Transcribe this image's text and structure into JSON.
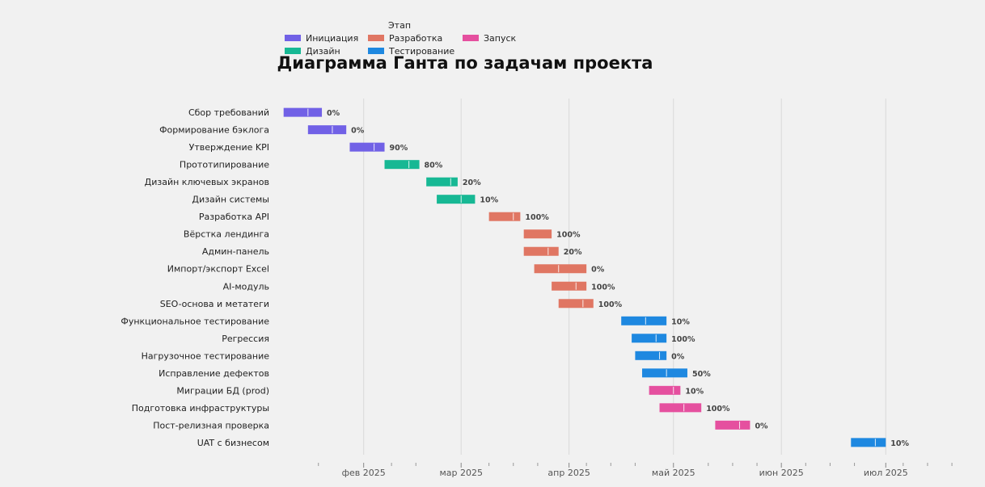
{
  "chart_data": {
    "type": "gantt",
    "title": "Диаграмма Ганта по задачам проекта",
    "legend": {
      "title": "Этап",
      "placement": "top-left",
      "items": [
        {
          "name": "Инициация",
          "color": "#7161e6"
        },
        {
          "name": "Дизайн",
          "color": "#17b894"
        },
        {
          "name": "Разработка",
          "color": "#e07663"
        },
        {
          "name": "Тестирование",
          "color": "#1e88e0"
        },
        {
          "name": "Запуск",
          "color": "#e5509f"
        }
      ]
    },
    "x_axis": {
      "type": "date",
      "range": [
        "2025-01-10",
        "2025-07-23"
      ],
      "tick_labels": [
        {
          "date": "2025-02-01",
          "label": "фев 2025"
        },
        {
          "date": "2025-03-01",
          "label": "мар 2025"
        },
        {
          "date": "2025-04-01",
          "label": "апр 2025"
        },
        {
          "date": "2025-05-01",
          "label": "май 2025"
        },
        {
          "date": "2025-06-01",
          "label": "июн 2025"
        },
        {
          "date": "2025-07-01",
          "label": "июл 2025"
        }
      ],
      "minor_ticks": [
        "2025-01-19",
        "2025-02-09",
        "2025-02-16",
        "2025-03-09",
        "2025-03-16",
        "2025-03-23",
        "2025-04-06",
        "2025-04-13",
        "2025-04-20",
        "2025-05-11",
        "2025-05-18",
        "2025-05-25",
        "2025-06-08",
        "2025-06-15",
        "2025-06-22",
        "2025-07-06",
        "2025-07-13",
        "2025-07-20"
      ]
    },
    "grid": true,
    "tasks": [
      {
        "name": "Сбор требований",
        "stage": "Инициация",
        "start": "2025-01-09",
        "end": "2025-01-20",
        "progress_label": "0%"
      },
      {
        "name": "Формирование бэклога",
        "stage": "Инициация",
        "start": "2025-01-16",
        "end": "2025-01-27",
        "progress_label": "0%"
      },
      {
        "name": "Утверждение KPI",
        "stage": "Инициация",
        "start": "2025-01-28",
        "end": "2025-02-07",
        "progress_label": "90%"
      },
      {
        "name": "Прототипирование",
        "stage": "Дизайн",
        "start": "2025-02-07",
        "end": "2025-02-17",
        "progress_label": "80%"
      },
      {
        "name": "Дизайн ключевых экранов",
        "stage": "Дизайн",
        "start": "2025-02-19",
        "end": "2025-02-28",
        "progress_label": "20%"
      },
      {
        "name": "Дизайн системы",
        "stage": "Дизайн",
        "start": "2025-02-22",
        "end": "2025-03-05",
        "progress_label": "10%"
      },
      {
        "name": "Разработка API",
        "stage": "Разработка",
        "start": "2025-03-09",
        "end": "2025-03-18",
        "progress_label": "100%"
      },
      {
        "name": "Вёрстка лендинга",
        "stage": "Разработка",
        "start": "2025-03-19",
        "end": "2025-03-27",
        "progress_label": "100%"
      },
      {
        "name": "Админ-панель",
        "stage": "Разработка",
        "start": "2025-03-19",
        "end": "2025-03-29",
        "progress_label": "20%"
      },
      {
        "name": "Импорт/экспорт Excel",
        "stage": "Разработка",
        "start": "2025-03-22",
        "end": "2025-04-06",
        "progress_label": "0%"
      },
      {
        "name": "AI-модуль",
        "stage": "Разработка",
        "start": "2025-03-27",
        "end": "2025-04-06",
        "progress_label": "100%"
      },
      {
        "name": "SEO-основа и метатеги",
        "stage": "Разработка",
        "start": "2025-03-29",
        "end": "2025-04-08",
        "progress_label": "100%"
      },
      {
        "name": "Функциональное тестирование",
        "stage": "Тестирование",
        "start": "2025-04-16",
        "end": "2025-04-29",
        "progress_label": "10%"
      },
      {
        "name": "Регрессия",
        "stage": "Тестирование",
        "start": "2025-04-19",
        "end": "2025-04-29",
        "progress_label": "100%"
      },
      {
        "name": "Нагрузочное тестирование",
        "stage": "Тестирование",
        "start": "2025-04-20",
        "end": "2025-04-29",
        "progress_label": "0%"
      },
      {
        "name": "Исправление дефектов",
        "stage": "Тестирование",
        "start": "2025-04-22",
        "end": "2025-05-05",
        "progress_label": "50%"
      },
      {
        "name": "Миграции БД (prod)",
        "stage": "Запуск",
        "start": "2025-04-24",
        "end": "2025-05-03",
        "progress_label": "10%"
      },
      {
        "name": "Подготовка инфраструктуры",
        "stage": "Запуск",
        "start": "2025-04-27",
        "end": "2025-05-09",
        "progress_label": "100%"
      },
      {
        "name": "Пост-релизная проверка",
        "stage": "Запуск",
        "start": "2025-05-13",
        "end": "2025-05-23",
        "progress_label": "0%"
      },
      {
        "name": "UAT с бизнесом",
        "stage": "Тестирование",
        "start": "2025-06-21",
        "end": "2025-07-01",
        "progress_label": "10%"
      }
    ]
  }
}
